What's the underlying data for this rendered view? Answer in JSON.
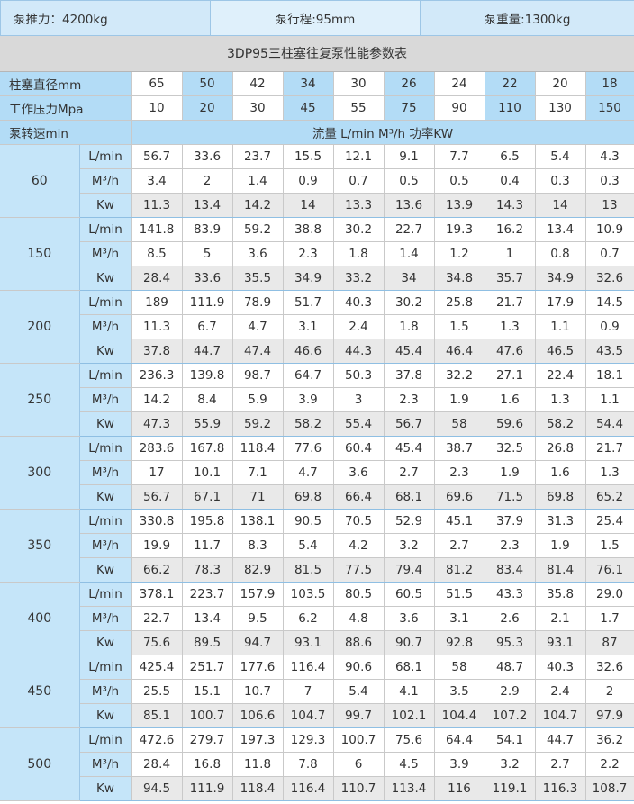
{
  "header": {
    "thrust": "泵推力：4200kg",
    "stroke": "泵行程:95mm",
    "weight": "泵重量:1300kg"
  },
  "title": "3DP95三柱塞往复泵性能参数表",
  "row_labels": {
    "diameter": "柱塞直径mm",
    "pressure": "工作压力Mpa",
    "speed": "泵转速min",
    "units_note": "流量 L/min M³/h  功率KW"
  },
  "diameters": [
    "65",
    "50",
    "42",
    "34",
    "30",
    "26",
    "24",
    "22",
    "20",
    "18"
  ],
  "pressures": [
    "10",
    "20",
    "30",
    "45",
    "55",
    "75",
    "90",
    "110",
    "130",
    "150"
  ],
  "unit_labels": {
    "flow": "L/min",
    "m3": "M³/h",
    "kw": "Kw"
  },
  "groups": [
    {
      "speed": "60",
      "lmin": [
        "56.7",
        "33.6",
        "23.7",
        "15.5",
        "12.1",
        "9.1",
        "7.7",
        "6.5",
        "5.4",
        "4.3"
      ],
      "m3h": [
        "3.4",
        "2",
        "1.4",
        "0.9",
        "0.7",
        "0.5",
        "0.5",
        "0.4",
        "0.3",
        "0.3"
      ],
      "kw": [
        "11.3",
        "13.4",
        "14.2",
        "14",
        "13.3",
        "13.6",
        "13.9",
        "14.3",
        "14",
        "13"
      ]
    },
    {
      "speed": "150",
      "lmin": [
        "141.8",
        "83.9",
        "59.2",
        "38.8",
        "30.2",
        "22.7",
        "19.3",
        "16.2",
        "13.4",
        "10.9"
      ],
      "m3h": [
        "8.5",
        "5",
        "3.6",
        "2.3",
        "1.8",
        "1.4",
        "1.2",
        "1",
        "0.8",
        "0.7"
      ],
      "kw": [
        "28.4",
        "33.6",
        "35.5",
        "34.9",
        "33.2",
        "34",
        "34.8",
        "35.7",
        "34.9",
        "32.6"
      ]
    },
    {
      "speed": "200",
      "lmin": [
        "189",
        "111.9",
        "78.9",
        "51.7",
        "40.3",
        "30.2",
        "25.8",
        "21.7",
        "17.9",
        "14.5"
      ],
      "m3h": [
        "11.3",
        "6.7",
        "4.7",
        "3.1",
        "2.4",
        "1.8",
        "1.5",
        "1.3",
        "1.1",
        "0.9"
      ],
      "kw": [
        "37.8",
        "44.7",
        "47.4",
        "46.6",
        "44.3",
        "45.4",
        "46.4",
        "47.6",
        "46.5",
        "43.5"
      ]
    },
    {
      "speed": "250",
      "lmin": [
        "236.3",
        "139.8",
        "98.7",
        "64.7",
        "50.3",
        "37.8",
        "32.2",
        "27.1",
        "22.4",
        "18.1"
      ],
      "m3h": [
        "14.2",
        "8.4",
        "5.9",
        "3.9",
        "3",
        "2.3",
        "1.9",
        "1.6",
        "1.3",
        "1.1"
      ],
      "kw": [
        "47.3",
        "55.9",
        "59.2",
        "58.2",
        "55.4",
        "56.7",
        "58",
        "59.6",
        "58.2",
        "54.4"
      ]
    },
    {
      "speed": "300",
      "lmin": [
        "283.6",
        "167.8",
        "118.4",
        "77.6",
        "60.4",
        "45.4",
        "38.7",
        "32.5",
        "26.8",
        "21.7"
      ],
      "m3h": [
        "17",
        "10.1",
        "7.1",
        "4.7",
        "3.6",
        "2.7",
        "2.3",
        "1.9",
        "1.6",
        "1.3"
      ],
      "kw": [
        "56.7",
        "67.1",
        "71",
        "69.8",
        "66.4",
        "68.1",
        "69.6",
        "71.5",
        "69.8",
        "65.2"
      ]
    },
    {
      "speed": "350",
      "lmin": [
        "330.8",
        "195.8",
        "138.1",
        "90.5",
        "70.5",
        "52.9",
        "45.1",
        "37.9",
        "31.3",
        "25.4"
      ],
      "m3h": [
        "19.9",
        "11.7",
        "8.3",
        "5.4",
        "4.2",
        "3.2",
        "2.7",
        "2.3",
        "1.9",
        "1.5"
      ],
      "kw": [
        "66.2",
        "78.3",
        "82.9",
        "81.5",
        "77.5",
        "79.4",
        "81.2",
        "83.4",
        "81.4",
        "76.1"
      ]
    },
    {
      "speed": "400",
      "lmin": [
        "378.1",
        "223.7",
        "157.9",
        "103.5",
        "80.5",
        "60.5",
        "51.5",
        "43.3",
        "35.8",
        "29.0"
      ],
      "m3h": [
        "22.7",
        "13.4",
        "9.5",
        "6.2",
        "4.8",
        "3.6",
        "3.1",
        "2.6",
        "2.1",
        "1.7"
      ],
      "kw": [
        "75.6",
        "89.5",
        "94.7",
        "93.1",
        "88.6",
        "90.7",
        "92.8",
        "95.3",
        "93.1",
        "87"
      ]
    },
    {
      "speed": "450",
      "lmin": [
        "425.4",
        "251.7",
        "177.6",
        "116.4",
        "90.6",
        "68.1",
        "58",
        "48.7",
        "40.3",
        "32.6"
      ],
      "m3h": [
        "25.5",
        "15.1",
        "10.7",
        "7",
        "5.4",
        "4.1",
        "3.5",
        "2.9",
        "2.4",
        "2"
      ],
      "kw": [
        "85.1",
        "100.7",
        "106.6",
        "104.7",
        "99.7",
        "102.1",
        "104.4",
        "107.2",
        "104.7",
        "97.9"
      ]
    },
    {
      "speed": "500",
      "lmin": [
        "472.6",
        "279.7",
        "197.3",
        "129.3",
        "100.7",
        "75.6",
        "64.4",
        "54.1",
        "44.7",
        "36.2"
      ],
      "m3h": [
        "28.4",
        "16.8",
        "11.8",
        "7.8",
        "6",
        "4.5",
        "3.9",
        "3.2",
        "2.7",
        "2.2"
      ],
      "kw": [
        "94.5",
        "111.9",
        "118.4",
        "116.4",
        "110.7",
        "113.4",
        "116",
        "119.1",
        "116.3",
        "108.7"
      ]
    }
  ]
}
